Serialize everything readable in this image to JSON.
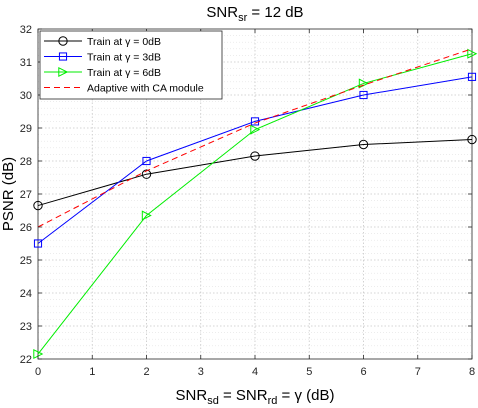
{
  "chart_data": {
    "type": "line",
    "title_main": "SNR",
    "title_sub": "sr",
    "title_rest": " = 12 dB",
    "xlabel_parts": [
      "SNR",
      "sd",
      " = SNR",
      "rd",
      " = γ (dB)"
    ],
    "ylabel": "PSNR (dB)",
    "xlim": [
      0,
      8
    ],
    "ylim": [
      22,
      32
    ],
    "xticks": [
      0,
      1,
      2,
      3,
      4,
      5,
      6,
      7,
      8
    ],
    "yticks": [
      22,
      23,
      24,
      25,
      26,
      27,
      28,
      29,
      30,
      31,
      32
    ],
    "grid": true,
    "legend_position": "top-left",
    "series": [
      {
        "name_prefix": "Train at ",
        "name_symbol": "γ",
        "name_suffix": " = 0dB",
        "color": "#000000",
        "marker": "circle",
        "dash": "solid",
        "x": [
          0,
          2,
          4,
          6,
          8
        ],
        "y": [
          26.65,
          27.6,
          28.15,
          28.5,
          28.65
        ]
      },
      {
        "name_prefix": "Train at ",
        "name_symbol": "γ",
        "name_suffix": " = 3dB",
        "color": "#0000ff",
        "marker": "square",
        "dash": "solid",
        "x": [
          0,
          2,
          4,
          6,
          8
        ],
        "y": [
          25.5,
          28.0,
          29.2,
          30.0,
          30.55
        ]
      },
      {
        "name_prefix": "Train at ",
        "name_symbol": "γ",
        "name_suffix": " = 6dB",
        "color": "#00ee00",
        "marker": "triangle-right",
        "dash": "solid",
        "x": [
          0,
          2,
          4,
          6,
          8
        ],
        "y": [
          22.15,
          26.35,
          28.95,
          30.35,
          31.25
        ]
      },
      {
        "name_prefix": "Adaptive with CA module",
        "name_symbol": "",
        "name_suffix": "",
        "color": "#ff0000",
        "marker": "none",
        "dash": "dashed",
        "x": [
          0,
          2,
          4,
          6,
          8
        ],
        "y": [
          26.0,
          27.7,
          29.15,
          30.3,
          31.4
        ]
      }
    ]
  }
}
